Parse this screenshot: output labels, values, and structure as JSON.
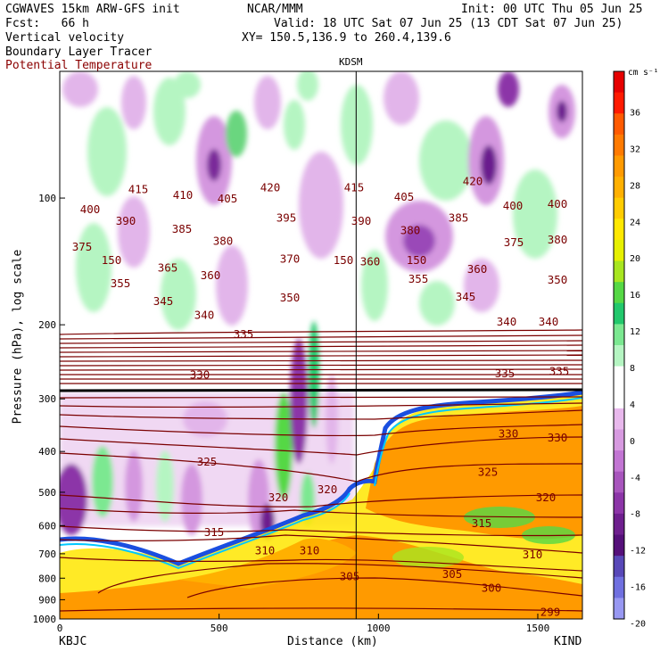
{
  "header": {
    "model": "CGWAVES 15km ARW-GFS init",
    "fcst": "Fcst:   66 h",
    "center": "NCAR/MMM",
    "init": "Init: 00 UTC Thu 05 Jun 25",
    "valid": "Valid: 18 UTC Sat 07 Jun 25 (13 CDT Sat 07 Jun 25)",
    "xy": "XY= 150.5,136.9 to 260.4,139.6",
    "fields": [
      "Vertical velocity",
      "Boundary Layer Tracer",
      "Potential Temperature"
    ]
  },
  "colors": {
    "theta": "#7a0000",
    "bl_tracer": "#000000",
    "accent_field": "#8b0000"
  },
  "chart_data": {
    "type": "heatmap",
    "xlabel": "Distance (km)",
    "ylabel": "Pressure (hPa), log scale",
    "x_ticks": [
      0,
      500,
      1000,
      1500
    ],
    "y_ticks": [
      100,
      200,
      300,
      400,
      500,
      600,
      700,
      800,
      900,
      1000
    ],
    "xlim": [
      0,
      1640
    ],
    "ylim": [
      1000,
      50
    ],
    "y_scale": "log",
    "station_left": "KBJC",
    "station_right": "KIND",
    "station_mid": {
      "label": "KDSM",
      "x_km": 930
    },
    "colorbar": {
      "unit": "cm s⁻¹",
      "labels": [
        36,
        32,
        28,
        24,
        20,
        16,
        12,
        8,
        4,
        0,
        -4,
        -8,
        -12,
        -16,
        -20
      ],
      "colors": [
        "#e60000",
        "#ff1a00",
        "#ff5a00",
        "#ff7a00",
        "#ff9a00",
        "#ffb000",
        "#ffcc00",
        "#ffe800",
        "#e6f000",
        "#a8e620",
        "#55d845",
        "#22c86c",
        "#7be891",
        "#b5f5c2",
        "#ffffff",
        "#ffffff",
        "#e8b8ec",
        "#d79ae0",
        "#c275d3",
        "#a855bd",
        "#8c35a8",
        "#6e1f8e",
        "#55107a",
        "#5848b8",
        "#7070e0",
        "#9898f2"
      ]
    },
    "theta_contours": [
      {
        "label": "415",
        "x": 155,
        "p": 95
      },
      {
        "label": "410",
        "x": 205,
        "p": 98
      },
      {
        "label": "405",
        "x": 255,
        "p": 100
      },
      {
        "label": "420",
        "x": 303,
        "p": 94
      },
      {
        "label": "415",
        "x": 397,
        "p": 94
      },
      {
        "label": "405",
        "x": 453,
        "p": 99
      },
      {
        "label": "420",
        "x": 530,
        "p": 91
      },
      {
        "label": "400",
        "x": 101,
        "p": 106
      },
      {
        "label": "390",
        "x": 141,
        "p": 113
      },
      {
        "label": "385",
        "x": 204,
        "p": 118
      },
      {
        "label": "380",
        "x": 250,
        "p": 126
      },
      {
        "label": "395",
        "x": 321,
        "p": 111
      },
      {
        "label": "390",
        "x": 405,
        "p": 113
      },
      {
        "label": "380",
        "x": 460,
        "p": 119
      },
      {
        "label": "385",
        "x": 514,
        "p": 111
      },
      {
        "label": "400",
        "x": 575,
        "p": 104
      },
      {
        "label": "400",
        "x": 625,
        "p": 103
      },
      {
        "label": "375",
        "x": 92,
        "p": 130
      },
      {
        "label": "375",
        "x": 576,
        "p": 127
      },
      {
        "label": "380",
        "x": 625,
        "p": 125
      },
      {
        "label": "370",
        "x": 325,
        "p": 139
      },
      {
        "label": "365",
        "x": 188,
        "p": 146
      },
      {
        "label": "360",
        "x": 236,
        "p": 152
      },
      {
        "label": "355",
        "x": 135,
        "p": 159
      },
      {
        "label": "355",
        "x": 469,
        "p": 155
      },
      {
        "label": "360",
        "x": 535,
        "p": 147
      },
      {
        "label": "350",
        "x": 325,
        "p": 172
      },
      {
        "label": "350",
        "x": 625,
        "p": 156
      },
      {
        "label": "345",
        "x": 183,
        "p": 175
      },
      {
        "label": "345",
        "x": 522,
        "p": 171
      },
      {
        "label": "340",
        "x": 229,
        "p": 189
      },
      {
        "label": "340",
        "x": 568,
        "p": 196
      },
      {
        "label": "340",
        "x": 615,
        "p": 196
      },
      {
        "label": "335",
        "x": 273,
        "p": 210
      },
      {
        "label": "335",
        "x": 566,
        "p": 260
      },
      {
        "label": "335",
        "x": 627,
        "p": 257
      },
      {
        "label": "330",
        "x": 224,
        "p": 262
      },
      {
        "label": "330",
        "x": 570,
        "p": 362
      },
      {
        "label": "330",
        "x": 625,
        "p": 370
      },
      {
        "label": "325",
        "x": 232,
        "p": 422
      },
      {
        "label": "325",
        "x": 547,
        "p": 446
      },
      {
        "label": "320",
        "x": 312,
        "p": 513
      },
      {
        "label": "320",
        "x": 367,
        "p": 490
      },
      {
        "label": "320",
        "x": 612,
        "p": 513
      },
      {
        "label": "315",
        "x": 240,
        "p": 620
      },
      {
        "label": "315",
        "x": 540,
        "p": 590
      },
      {
        "label": "310",
        "x": 297,
        "p": 685
      },
      {
        "label": "310",
        "x": 347,
        "p": 685
      },
      {
        "label": "310",
        "x": 597,
        "p": 700
      },
      {
        "label": "305",
        "x": 392,
        "p": 790
      },
      {
        "label": "305",
        "x": 507,
        "p": 780
      },
      {
        "label": "300",
        "x": 551,
        "p": 840
      },
      {
        "label": "299",
        "x": 617,
        "p": 960
      },
      {
        "label": "150",
        "x": 125,
        "p": 140
      },
      {
        "label": "150",
        "x": 385,
        "p": 140
      },
      {
        "label": "360",
        "x": 415,
        "p": 141
      },
      {
        "label": "150",
        "x": 467,
        "p": 140
      }
    ]
  }
}
